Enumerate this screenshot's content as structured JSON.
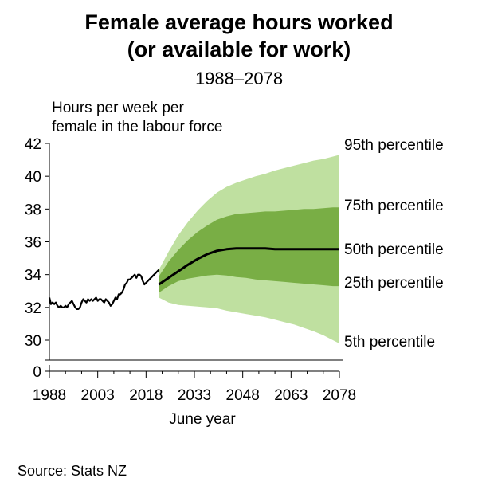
{
  "chart_data": {
    "type": "area",
    "title_line1": "Female average hours worked",
    "title_line2": "(or available for work)",
    "subtitle": "1988–2078",
    "ylabel_line1": "Hours per week per",
    "ylabel_line2": "female in the labour force",
    "xlabel": "June year",
    "source": "Source: Stats NZ",
    "x_ticks": [
      1988,
      2003,
      2018,
      2033,
      2048,
      2063,
      2078
    ],
    "y_ticks": [
      0,
      30,
      32,
      34,
      36,
      38,
      40,
      42
    ],
    "ylim": [
      0,
      42
    ],
    "y_axis_break": [
      0,
      29.5
    ],
    "xlim": [
      1988,
      2078
    ],
    "colors": {
      "band_outer": "#bfe0a0",
      "band_inner": "#79ae45",
      "median": "#000000"
    },
    "historical": {
      "name": "",
      "x": [
        1988.0,
        1988.5,
        1989.0,
        1989.5,
        1990.0,
        1990.5,
        1991.0,
        1991.5,
        1992.0,
        1992.5,
        1993.0,
        1993.5,
        1994.0,
        1994.5,
        1995.0,
        1995.5,
        1996.0,
        1996.5,
        1997.0,
        1997.5,
        1998.0,
        1998.5,
        1999.0,
        1999.5,
        2000.0,
        2000.5,
        2001.0,
        2001.5,
        2002.0,
        2002.5,
        2003.0,
        2003.5,
        2004.0,
        2004.5,
        2005.0,
        2005.5,
        2006.0,
        2006.5,
        2007.0,
        2007.5,
        2008.0,
        2008.5,
        2009.0,
        2009.5,
        2010.0,
        2010.5,
        2011.0,
        2011.5,
        2012.0,
        2012.5,
        2013.0,
        2013.5,
        2014.0,
        2014.5,
        2015.0,
        2015.5,
        2016.0,
        2016.5,
        2017.0,
        2017.5,
        2018.0,
        2018.5,
        2019.0,
        2019.5,
        2020.0,
        2020.5,
        2021.0,
        2021.5,
        2022.0
      ],
      "values": [
        32.6,
        32.2,
        32.3,
        32.2,
        32.3,
        32.1,
        32.0,
        32.1,
        32.0,
        32.0,
        32.1,
        32.0,
        32.2,
        32.3,
        32.4,
        32.2,
        32.0,
        31.9,
        31.9,
        32.0,
        32.3,
        32.5,
        32.4,
        32.3,
        32.5,
        32.4,
        32.5,
        32.4,
        32.5,
        32.6,
        32.4,
        32.5,
        32.5,
        32.4,
        32.3,
        32.5,
        32.4,
        32.3,
        32.1,
        32.2,
        32.4,
        32.6,
        32.5,
        32.8,
        32.8,
        32.9,
        33.1,
        33.4,
        33.5,
        33.7,
        33.7,
        33.8,
        33.9,
        34.0,
        33.8,
        34.0,
        34.0,
        33.9,
        33.6,
        33.4,
        33.5,
        33.6,
        33.7,
        33.8,
        33.9,
        34.0,
        34.1,
        34.2,
        34.3
      ]
    },
    "projection": {
      "x": [
        2022,
        2025,
        2028,
        2031,
        2034,
        2037,
        2040,
        2043,
        2046,
        2049,
        2052,
        2055,
        2058,
        2061,
        2064,
        2067,
        2070,
        2073,
        2076,
        2078
      ],
      "p50": [
        33.4,
        33.8,
        34.2,
        34.6,
        34.95,
        35.25,
        35.45,
        35.55,
        35.6,
        35.6,
        35.6,
        35.6,
        35.55,
        35.55,
        35.55,
        35.55,
        35.55,
        35.55,
        35.55,
        35.55
      ],
      "p75": [
        33.9,
        34.8,
        35.5,
        36.1,
        36.6,
        37.0,
        37.35,
        37.55,
        37.7,
        37.75,
        37.8,
        37.85,
        37.85,
        37.9,
        37.95,
        38.0,
        38.0,
        38.05,
        38.1,
        38.1
      ],
      "p25": [
        32.9,
        33.3,
        33.6,
        33.75,
        33.85,
        33.95,
        34.0,
        33.95,
        33.85,
        33.8,
        33.7,
        33.65,
        33.6,
        33.55,
        33.5,
        33.45,
        33.4,
        33.35,
        33.3,
        33.3
      ],
      "p95": [
        34.3,
        35.4,
        36.4,
        37.2,
        37.9,
        38.5,
        39.0,
        39.35,
        39.6,
        39.8,
        40.0,
        40.15,
        40.35,
        40.5,
        40.65,
        40.8,
        40.95,
        41.05,
        41.2,
        41.3
      ],
      "p5": [
        32.6,
        32.3,
        32.15,
        32.1,
        32.05,
        32.0,
        31.95,
        31.8,
        31.7,
        31.6,
        31.5,
        31.4,
        31.25,
        31.1,
        30.95,
        30.75,
        30.55,
        30.3,
        30.0,
        29.8
      ]
    },
    "band_labels": [
      "95th percentile",
      "75th percentile",
      "50th percentile",
      "25th percentile",
      "5th percentile"
    ]
  }
}
